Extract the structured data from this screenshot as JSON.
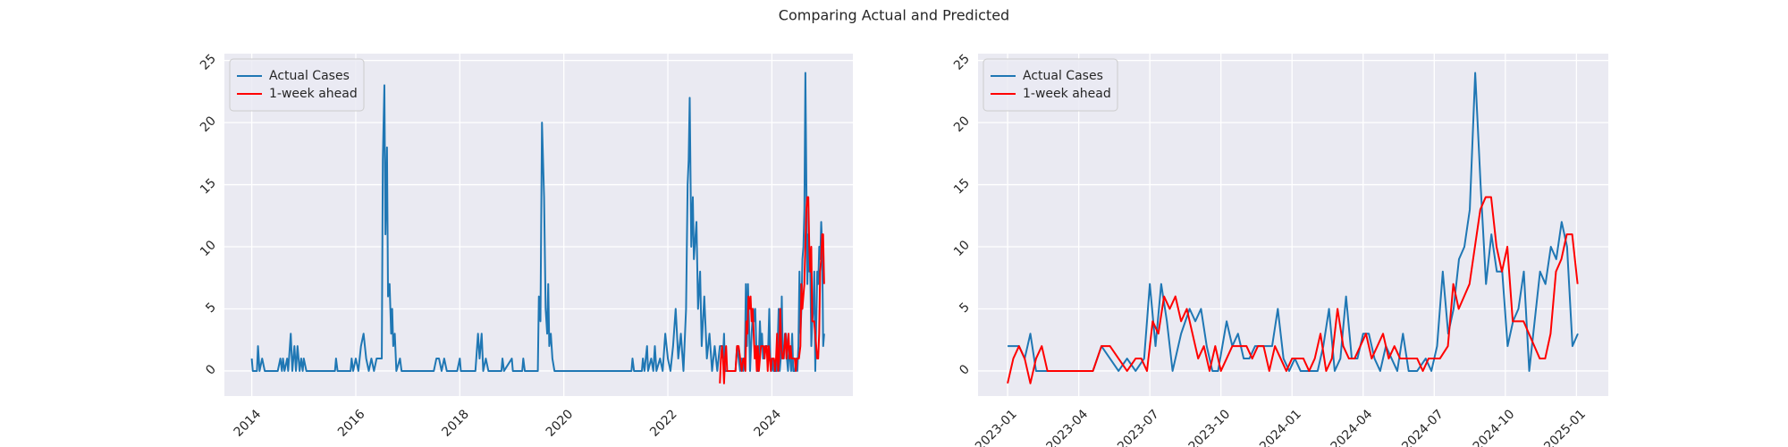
{
  "title": "Comparing Actual and Predicted",
  "chart_data": [
    {
      "type": "line",
      "grid": true,
      "legend": "upper left",
      "xlim": [
        2013.474,
        2025.557
      ],
      "xticks": [
        2014,
        2016,
        2018,
        2020,
        2022,
        2024
      ],
      "ylim": [
        -2.02,
        25.55
      ],
      "yticks": [
        0,
        5,
        10,
        15,
        20,
        25
      ],
      "series": [
        {
          "name": "Actual Cases",
          "color": "#1f77b4",
          "x": [
            2014.0,
            2014.02,
            2014.1,
            2014.12,
            2014.15,
            2014.2,
            2014.25,
            2014.5,
            2014.55,
            2014.58,
            2014.6,
            2014.63,
            2014.68,
            2014.7,
            2014.75,
            2014.78,
            2014.82,
            2014.85,
            2014.88,
            2014.92,
            2014.95,
            2014.98,
            2015.0,
            2015.05,
            2015.6,
            2015.62,
            2015.65,
            2015.9,
            2015.92,
            2015.95,
            2016.0,
            2016.05,
            2016.1,
            2016.15,
            2016.2,
            2016.25,
            2016.3,
            2016.35,
            2016.4,
            2016.45,
            2016.5,
            2016.52,
            2016.55,
            2016.57,
            2016.6,
            2016.62,
            2016.65,
            2016.68,
            2016.7,
            2016.72,
            2016.75,
            2016.78,
            2016.85,
            2016.88,
            2017.5,
            2017.55,
            2017.6,
            2017.65,
            2017.7,
            2017.75,
            2017.95,
            2018.0,
            2018.02,
            2018.3,
            2018.35,
            2018.38,
            2018.42,
            2018.45,
            2018.5,
            2018.55,
            2018.8,
            2018.82,
            2018.85,
            2019.0,
            2019.02,
            2019.2,
            2019.22,
            2019.25,
            2019.5,
            2019.52,
            2019.55,
            2019.58,
            2019.62,
            2019.65,
            2019.68,
            2019.7,
            2019.72,
            2019.75,
            2019.78,
            2019.82,
            2021.3,
            2021.32,
            2021.35,
            2021.5,
            2021.52,
            2021.55,
            2021.6,
            2021.62,
            2021.68,
            2021.72,
            2021.75,
            2021.78,
            2021.85,
            2021.9,
            2021.95,
            2022.0,
            2022.05,
            2022.1,
            2022.15,
            2022.2,
            2022.25,
            2022.3,
            2022.35,
            2022.38,
            2022.4,
            2022.42,
            2022.45,
            2022.48,
            2022.5,
            2022.55,
            2022.58,
            2022.62,
            2022.65,
            2022.7,
            2022.75,
            2022.8,
            2022.85,
            2022.9,
            2022.95,
            2023.0,
            2023.04,
            2023.06,
            2023.08,
            2023.1,
            2023.2,
            2023.3,
            2023.33,
            2023.36,
            2023.39,
            2023.42,
            2023.45,
            2023.48,
            2023.5,
            2023.52,
            2023.54,
            2023.56,
            2023.58,
            2023.61,
            2023.64,
            2023.66,
            2023.68,
            2023.7,
            2023.72,
            2023.74,
            2023.77,
            2023.79,
            2023.81,
            2023.83,
            2023.85,
            2023.87,
            2023.9,
            2023.93,
            2023.95,
            2023.97,
            2023.99,
            2024.01,
            2024.03,
            2024.06,
            2024.09,
            2024.11,
            2024.13,
            2024.15,
            2024.17,
            2024.19,
            2024.21,
            2024.23,
            2024.25,
            2024.27,
            2024.29,
            2024.31,
            2024.33,
            2024.35,
            2024.37,
            2024.39,
            2024.41,
            2024.44,
            2024.47,
            2024.49,
            2024.51,
            2024.53,
            2024.549,
            2024.568,
            2024.587,
            2024.606,
            2024.625,
            2024.644,
            2024.663,
            2024.682,
            2024.701,
            2024.72,
            2024.739,
            2024.758,
            2024.777,
            2024.796,
            2024.815,
            2024.834,
            2024.853,
            2024.872,
            2024.891,
            2024.91,
            2024.929,
            2024.948,
            2024.967,
            2024.986,
            2025.005
          ],
          "values": [
            1,
            0,
            0,
            2,
            0,
            1,
            0,
            0,
            1,
            0,
            1,
            0,
            1,
            0,
            3,
            0,
            2,
            0,
            2,
            0,
            1,
            0,
            1,
            0,
            0,
            1,
            0,
            0,
            1,
            0,
            1,
            0,
            2,
            3,
            1,
            0,
            1,
            0,
            1,
            1,
            1,
            17,
            23,
            11,
            18,
            6,
            7,
            3,
            5,
            2,
            3,
            0,
            1,
            0,
            0,
            1,
            1,
            0,
            1,
            0,
            0,
            1,
            0,
            0,
            3,
            1,
            3,
            0,
            1,
            0,
            0,
            1,
            0,
            1,
            0,
            0,
            1,
            0,
            0,
            6,
            4,
            20,
            14,
            5,
            3,
            7,
            2,
            3,
            1,
            0,
            0,
            1,
            0,
            0,
            1,
            0,
            2,
            0,
            1,
            0,
            2,
            0,
            1,
            0,
            3,
            1,
            0,
            2,
            5,
            1,
            3,
            0,
            5,
            15,
            17,
            22,
            10,
            14,
            9,
            12,
            5,
            8,
            2,
            6,
            1,
            3,
            0,
            2,
            0,
            2,
            2,
            1,
            3,
            0,
            0,
            0,
            2,
            1,
            0,
            1,
            0,
            1,
            7,
            2,
            7,
            4,
            0,
            3,
            5,
            4,
            5,
            2,
            0,
            0,
            4,
            2,
            3,
            1,
            1,
            2,
            2,
            2,
            5,
            1,
            0,
            1,
            0,
            0,
            0,
            2,
            5,
            0,
            1,
            6,
            1,
            1,
            3,
            3,
            1,
            0,
            2,
            1,
            0,
            3,
            0,
            0,
            1,
            0,
            2,
            8,
            3,
            5,
            9,
            10,
            13,
            24,
            15,
            7,
            11,
            8,
            8,
            2,
            4,
            5,
            8,
            0,
            4,
            8,
            7,
            10,
            9,
            12,
            10,
            2,
            3
          ]
        },
        {
          "name": "1-week ahead",
          "color": "#ff0000",
          "x": [
            2023.0,
            2023.02,
            2023.04,
            2023.06,
            2023.08,
            2023.1,
            2023.12,
            2023.14,
            2023.3,
            2023.33,
            2023.36,
            2023.39,
            2023.42,
            2023.45,
            2023.47,
            2023.49,
            2023.51,
            2023.53,
            2023.55,
            2023.57,
            2023.59,
            2023.61,
            2023.63,
            2023.65,
            2023.67,
            2023.69,
            2023.71,
            2023.73,
            2023.75,
            2023.77,
            2023.79,
            2023.82,
            2023.84,
            2023.86,
            2023.88,
            2023.9,
            2023.92,
            2023.94,
            2023.96,
            2023.98,
            2024.0,
            2024.02,
            2024.04,
            2024.06,
            2024.08,
            2024.1,
            2024.12,
            2024.14,
            2024.16,
            2024.18,
            2024.2,
            2024.22,
            2024.24,
            2024.26,
            2024.28,
            2024.3,
            2024.32,
            2024.34,
            2024.36,
            2024.38,
            2024.4,
            2024.42,
            2024.44,
            2024.46,
            2024.48,
            2024.5,
            2024.52,
            2024.548,
            2024.567,
            2024.586,
            2024.605,
            2024.624,
            2024.643,
            2024.662,
            2024.681,
            2024.7,
            2024.719,
            2024.738,
            2024.757,
            2024.776,
            2024.795,
            2024.814,
            2024.833,
            2024.852,
            2024.871,
            2024.89,
            2024.909,
            2024.928,
            2024.947,
            2024.966,
            2024.985,
            2025.004
          ],
          "values": [
            -1,
            1,
            2,
            1,
            -1,
            1,
            2,
            0,
            0,
            2,
            2,
            1,
            0,
            1,
            1,
            0,
            4,
            3,
            6,
            5,
            6,
            4,
            5,
            3,
            1,
            2,
            0,
            2,
            0,
            1,
            2,
            2,
            2,
            1,
            2,
            2,
            0,
            2,
            1,
            0,
            1,
            1,
            1,
            0,
            1,
            3,
            0,
            1,
            5,
            2,
            1,
            1,
            2,
            3,
            1,
            2,
            3,
            1,
            2,
            1,
            1,
            1,
            1,
            0,
            1,
            1,
            1,
            2,
            7,
            5,
            6,
            7,
            10,
            13,
            14,
            14,
            10,
            8,
            10,
            4,
            4,
            4,
            3,
            2,
            1,
            1,
            3,
            8,
            9,
            11,
            11,
            7
          ]
        }
      ]
    },
    {
      "type": "line",
      "grid": true,
      "legend": "upper left",
      "xlim": [
        2022.896,
        2025.112
      ],
      "xticks": [
        {
          "value": 2023.0,
          "label": "2023-01"
        },
        {
          "value": 2023.25,
          "label": "2023-04"
        },
        {
          "value": 2023.5,
          "label": "2023-07"
        },
        {
          "value": 2023.75,
          "label": "2023-10"
        },
        {
          "value": 2024.0,
          "label": "2024-01"
        },
        {
          "value": 2024.25,
          "label": "2024-04"
        },
        {
          "value": 2024.5,
          "label": "2024-07"
        },
        {
          "value": 2024.75,
          "label": "2024-10"
        },
        {
          "value": 2025.0,
          "label": "2025-01"
        }
      ],
      "ylim": [
        -2.02,
        25.55
      ],
      "yticks": [
        0,
        5,
        10,
        15,
        20,
        25
      ],
      "series": [
        {
          "name": "Actual Cases",
          "color": "#1f77b4",
          "x": [
            2023.0,
            2023.04,
            2023.06,
            2023.08,
            2023.1,
            2023.2,
            2023.3,
            2023.33,
            2023.36,
            2023.39,
            2023.42,
            2023.45,
            2023.48,
            2023.5,
            2023.52,
            2023.54,
            2023.56,
            2023.58,
            2023.61,
            2023.64,
            2023.66,
            2023.68,
            2023.7,
            2023.72,
            2023.74,
            2023.77,
            2023.79,
            2023.81,
            2023.83,
            2023.85,
            2023.87,
            2023.9,
            2023.93,
            2023.95,
            2023.97,
            2023.99,
            2024.01,
            2024.03,
            2024.06,
            2024.09,
            2024.11,
            2024.13,
            2024.15,
            2024.17,
            2024.19,
            2024.21,
            2024.23,
            2024.25,
            2024.27,
            2024.29,
            2024.31,
            2024.33,
            2024.35,
            2024.37,
            2024.39,
            2024.41,
            2024.44,
            2024.47,
            2024.49,
            2024.51,
            2024.53,
            2024.549,
            2024.568,
            2024.587,
            2024.606,
            2024.625,
            2024.644,
            2024.663,
            2024.682,
            2024.701,
            2024.72,
            2024.739,
            2024.758,
            2024.777,
            2024.796,
            2024.815,
            2024.834,
            2024.853,
            2024.872,
            2024.891,
            2024.91,
            2024.929,
            2024.948,
            2024.967,
            2024.986,
            2025.005
          ],
          "values": [
            2,
            2,
            1,
            3,
            0,
            0,
            0,
            2,
            1,
            0,
            1,
            0,
            1,
            7,
            2,
            7,
            4,
            0,
            3,
            5,
            4,
            5,
            2,
            0,
            0,
            4,
            2,
            3,
            1,
            1,
            2,
            2,
            2,
            5,
            1,
            0,
            1,
            0,
            0,
            0,
            2,
            5,
            0,
            1,
            6,
            1,
            1,
            3,
            3,
            1,
            0,
            2,
            1,
            0,
            3,
            0,
            0,
            1,
            0,
            2,
            8,
            3,
            5,
            9,
            10,
            13,
            24,
            15,
            7,
            11,
            8,
            8,
            2,
            4,
            5,
            8,
            0,
            4,
            8,
            7,
            10,
            9,
            12,
            10,
            2,
            3
          ]
        },
        {
          "name": "1-week ahead",
          "color": "#ff0000",
          "x": [
            2023.0,
            2023.02,
            2023.04,
            2023.06,
            2023.08,
            2023.1,
            2023.12,
            2023.14,
            2023.3,
            2023.33,
            2023.36,
            2023.39,
            2023.42,
            2023.45,
            2023.47,
            2023.49,
            2023.51,
            2023.53,
            2023.55,
            2023.57,
            2023.59,
            2023.61,
            2023.63,
            2023.65,
            2023.67,
            2023.69,
            2023.71,
            2023.73,
            2023.75,
            2023.77,
            2023.79,
            2023.82,
            2023.84,
            2023.86,
            2023.88,
            2023.9,
            2023.92,
            2023.94,
            2023.96,
            2023.98,
            2024.0,
            2024.02,
            2024.04,
            2024.06,
            2024.08,
            2024.1,
            2024.12,
            2024.14,
            2024.16,
            2024.18,
            2024.2,
            2024.22,
            2024.24,
            2024.26,
            2024.28,
            2024.3,
            2024.32,
            2024.34,
            2024.36,
            2024.38,
            2024.4,
            2024.42,
            2024.44,
            2024.46,
            2024.48,
            2024.5,
            2024.52,
            2024.548,
            2024.567,
            2024.586,
            2024.605,
            2024.624,
            2024.643,
            2024.662,
            2024.681,
            2024.7,
            2024.719,
            2024.738,
            2024.757,
            2024.776,
            2024.795,
            2024.814,
            2024.833,
            2024.852,
            2024.871,
            2024.89,
            2024.909,
            2024.928,
            2024.947,
            2024.966,
            2024.985,
            2025.004
          ],
          "values": [
            -1,
            1,
            2,
            1,
            -1,
            1,
            2,
            0,
            0,
            2,
            2,
            1,
            0,
            1,
            1,
            0,
            4,
            3,
            6,
            5,
            6,
            4,
            5,
            3,
            1,
            2,
            0,
            2,
            0,
            1,
            2,
            2,
            2,
            1,
            2,
            2,
            0,
            2,
            1,
            0,
            1,
            1,
            1,
            0,
            1,
            3,
            0,
            1,
            5,
            2,
            1,
            1,
            2,
            3,
            1,
            2,
            3,
            1,
            2,
            1,
            1,
            1,
            1,
            0,
            1,
            1,
            1,
            2,
            7,
            5,
            6,
            7,
            10,
            13,
            14,
            14,
            10,
            8,
            10,
            4,
            4,
            4,
            3,
            2,
            1,
            1,
            3,
            8,
            9,
            11,
            11,
            7
          ]
        }
      ]
    }
  ]
}
